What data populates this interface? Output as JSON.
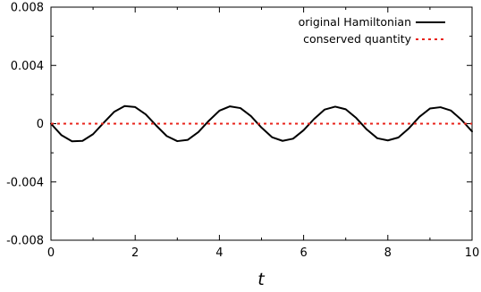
{
  "chart_data": {
    "type": "line",
    "title": "",
    "xlabel": "t",
    "ylabel": "",
    "xlim": [
      0,
      10
    ],
    "ylim": [
      -0.008,
      0.008
    ],
    "x_ticks": [
      0,
      2,
      4,
      6,
      8,
      10
    ],
    "x_tick_labels": [
      "0",
      "2",
      "4",
      "6",
      "8",
      "10"
    ],
    "y_ticks": [
      0.008,
      0.004,
      0,
      -0.004,
      -0.008
    ],
    "y_tick_labels": [
      "0.008",
      "0.004",
      "0",
      "-0.004",
      "-0.008"
    ],
    "grid": false,
    "legend_position": "top-right",
    "series": [
      {
        "name": "original Hamiltonian",
        "color": "#000000",
        "style": "solid",
        "x": [
          0,
          0.25,
          0.5,
          0.75,
          1.0,
          1.25,
          1.5,
          1.75,
          2.0,
          2.25,
          2.5,
          2.75,
          3.0,
          3.25,
          3.5,
          3.75,
          4.0,
          4.25,
          4.5,
          4.75,
          5.0,
          5.25,
          5.5,
          5.75,
          6.0,
          6.25,
          6.5,
          6.75,
          7.0,
          7.25,
          7.5,
          7.75,
          8.0,
          8.25,
          8.5,
          8.75,
          9.0,
          9.25,
          9.5,
          9.75,
          10.0
        ],
        "y": [
          0.0,
          -0.00079,
          -0.00121,
          -0.00118,
          -0.00072,
          6e-05,
          0.00081,
          0.00121,
          0.00114,
          0.00064,
          -0.00013,
          -0.00085,
          -0.0012,
          -0.00111,
          -0.00058,
          0.0002,
          0.00089,
          0.00119,
          0.00107,
          0.00052,
          -0.00027,
          -0.00093,
          -0.00118,
          -0.00103,
          -0.00045,
          0.00033,
          0.00097,
          0.00117,
          0.00099,
          0.00039,
          -0.0004,
          -0.001,
          -0.00115,
          -0.00095,
          -0.00032,
          0.00047,
          0.00104,
          0.00113,
          0.0009,
          0.00026,
          -0.00053
        ]
      },
      {
        "name": "conserved quantity",
        "color": "#e8231a",
        "style": "dotted",
        "x": [
          0,
          10
        ],
        "y": [
          0,
          0
        ]
      }
    ]
  }
}
